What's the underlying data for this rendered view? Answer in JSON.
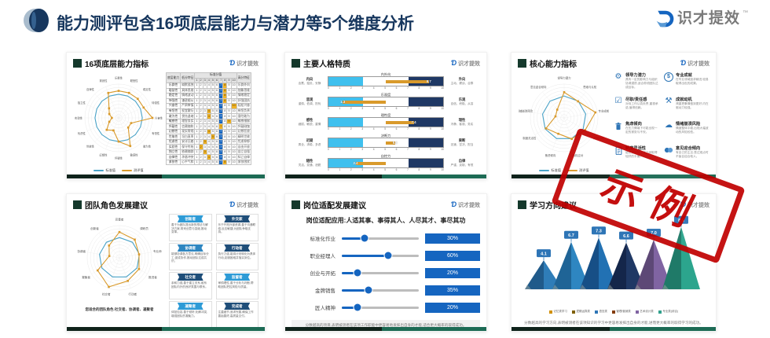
{
  "header": {
    "title": "能力测评包含16项底层能力与潜力等5个维度分析",
    "brand": "识才提效",
    "brand_tm": "™"
  },
  "stamp": {
    "label": "示例",
    "color": "#c00000"
  },
  "cards": {
    "c1": {
      "title": "16项底层能力指标"
    },
    "c2": {
      "title": "主要人格特质"
    },
    "c3": {
      "title": "核心能力指标",
      "items": [
        {
          "icon": "gear-icon",
          "title": "领导力潜力",
          "desc": "具有一定的影响力与组织协调潜质,适合带领团队达成目标。"
        },
        {
          "icon": "coin-icon",
          "title": "专业成就",
          "desc": "在专业领域追求精进,较易取得出色的成果。"
        },
        {
          "icon": "check-icon",
          "title": "尽职/责任感",
          "desc": "对待工作认真负责,重视承诺,值得信赖。"
        },
        {
          "icon": "tools-icon",
          "title": "成就动机",
          "desc": "渴望把事情做到更好,内在驱动力较强。"
        },
        {
          "icon": "trash-icon",
          "title": "焦虑倾向",
          "desc": "在压力情境下可能出现一定的紧张与不安。"
        },
        {
          "icon": "cloud-icon",
          "title": "情绪崩溃风险",
          "desc": "情绪整体平稳,出现大幅波动的风险较低。"
        },
        {
          "icon": "clipboard-icon",
          "title": "制度灵活性",
          "desc": "能在规则与变化之间取得较好的平衡。"
        },
        {
          "icon": "masks-icon",
          "title": "意见迎合倾向",
          "desc": "有自己的主见,表达观点时不盲目迎合他人。"
        }
      ]
    },
    "c4": {
      "title": "团队角色发展建议",
      "caption": "您适合的团队角色:社交者、协调者、凝聚者",
      "ribbons": [
        {
          "label": "创新者",
          "color": "#2e9bd6",
          "desc": "善于为团队提出新的想法与解决方案,带来创意与突破,推动变革。"
        },
        {
          "label": "外交家",
          "color": "#1f4e79",
          "desc": "乐于开拓外部资源,善于沟通联络,反应敏捷,为团队争取支持。"
        },
        {
          "label": "协调者",
          "color": "#2e86c1",
          "desc": "能够协调各方意见,明确目标分工,促成协作,推动团队达成共识。"
        },
        {
          "label": "行动者",
          "color": "#1f4e79",
          "desc": "执行力强,能将计划转化为具体行动,克服困难并落实到位。"
        },
        {
          "label": "社交者",
          "color": "#1f4e79",
          "desc": "亲和力强,善于建立关系,维系团队内外的良好氛围与联系。"
        },
        {
          "label": "监督者",
          "color": "#2e9bd6",
          "desc": "审慎理性,善于分析与判断,帮助团队把控风险与质量。"
        },
        {
          "label": "凝聚者",
          "color": "#2e9bd6",
          "desc": "体贴包容,善于倾听,化解冲突,增强团队的凝聚力。"
        },
        {
          "label": "完成者",
          "color": "#1f4e79",
          "desc": "注重细节,追求完善,确保工作善始善终,高质量交付。"
        }
      ]
    },
    "c5": {
      "title": "岗位适配发展建议",
      "subtitle": "岗位适配应用:人适其事、事得其人、人尽其才、事尽其功",
      "note": "分数越高的项目,表明被测者在该项工作职能中更容易地发挥出自身的才能,适合更大概率的取得成功。"
    },
    "c6": {
      "title": "学习方向建议",
      "note": "分数越高的学习方向,表明被测者在该项知识的学习中更容易发挥出自身的才能,进而更大概率的取得学习的成功。"
    }
  },
  "chart_data": [
    {
      "id": "abilities-radar",
      "type": "radar",
      "title": "16项底层能力指标",
      "rmax": 10,
      "labels": [
        "乐群性",
        "聪慧性",
        "稳定性",
        "恃强性",
        "兴奋性",
        "有恒性",
        "敢为性",
        "敏感性",
        "怀疑性",
        "幻想性",
        "世故性",
        "忧虑性",
        "实验性",
        "独立性",
        "自律性",
        "紧张性"
      ],
      "series": [
        {
          "name": "标准值",
          "color": "#4aa3c8",
          "markers": false,
          "values": [
            7,
            7,
            7,
            7,
            7,
            7,
            7,
            7,
            7,
            7,
            7,
            7,
            7,
            7,
            7,
            7
          ]
        },
        {
          "name": "测评值",
          "color": "#d99a2b",
          "markers": true,
          "values": [
            8,
            8,
            8,
            8,
            10,
            4,
            4,
            9,
            7,
            4,
            5,
            3,
            2,
            3,
            4,
            8
          ]
        }
      ]
    },
    {
      "id": "abilities-table",
      "type": "table",
      "headers": [
        "底层能力",
        "低分特征",
        "标准分值",
        "高分特征"
      ],
      "scale": [
        1,
        2,
        3,
        4,
        5,
        6,
        7,
        8,
        9,
        10
      ],
      "standard": 7,
      "rows": [
        {
          "name": "乐群性",
          "low": "缄默孤独",
          "high": "乐群外向",
          "score": 8
        },
        {
          "name": "聪慧性",
          "low": "具体思维",
          "high": "抽象思维",
          "score": 8
        },
        {
          "name": "稳定性",
          "low": "情绪波动",
          "high": "情绪稳定",
          "score": 8
        },
        {
          "name": "恃强性",
          "low": "谦逊顺从",
          "high": "好强固执",
          "score": 8
        },
        {
          "name": "兴奋性",
          "low": "严肃审慎",
          "high": "轻松兴奋",
          "score": 10
        },
        {
          "name": "有恒性",
          "low": "权宜敷衍",
          "high": "有恒负责",
          "score": 4
        },
        {
          "name": "敢为性",
          "low": "畏怯退缩",
          "high": "冒险敢为",
          "score": 4
        },
        {
          "name": "敏感性",
          "low": "理智务实",
          "high": "敏感细腻",
          "score": 9
        },
        {
          "name": "怀疑性",
          "low": "信赖随和",
          "high": "怀疑刚愎",
          "score": 7
        },
        {
          "name": "幻想性",
          "low": "现实常规",
          "high": "幻想狂放",
          "score": 4
        },
        {
          "name": "世故性",
          "low": "坦白直率",
          "high": "精明世故",
          "score": 5
        },
        {
          "name": "忧虑性",
          "low": "安详沉着",
          "high": "忧虑抑郁",
          "score": 3
        },
        {
          "name": "实验性",
          "low": "保守传统",
          "high": "自由开放",
          "score": 2
        },
        {
          "name": "独立性",
          "low": "依赖随群",
          "high": "自立自强",
          "score": 3
        },
        {
          "name": "自律性",
          "low": "矛盾冲突",
          "high": "知己自律",
          "score": 4
        },
        {
          "name": "紧张性",
          "low": "心平气和",
          "high": "紧张困扰",
          "score": 8
        }
      ]
    },
    {
      "id": "personality-bars",
      "type": "bar",
      "title": "主要人格特质",
      "axis_min": 0,
      "axis_max": 10,
      "midpoint": 5,
      "low_band": [
        0,
        3
      ],
      "high_band": [
        7,
        10
      ],
      "rows": [
        {
          "trait": "内外向",
          "value": 8.7,
          "left_title": "内向",
          "left_desc": "含蓄、独处、安静",
          "right_title": "外向",
          "right_desc": "主动、健谈、合群"
        },
        {
          "trait": "乐观度",
          "value": 1.3,
          "left_title": "悲观",
          "left_desc": "谨慎、低调、担忧",
          "right_title": "乐观",
          "right_desc": "自信、积极、从容"
        },
        {
          "trait": "理性度",
          "value": 7.4,
          "left_title": "感性",
          "left_desc": "细腻、敏锐、重情",
          "right_title": "理性",
          "right_desc": "冷静、客观、务实"
        },
        {
          "trait": "决断力",
          "value": 5.8,
          "left_title": "迟疑",
          "left_desc": "周全、求稳、多虑",
          "right_title": "果断",
          "right_desc": "迅速、坚决、担当"
        },
        {
          "trait": "自控力",
          "value": 2.4,
          "left_title": "随性",
          "left_desc": "灵活、变通、洒脱",
          "right_title": "自律",
          "right_desc": "严谨、克制、有恒"
        }
      ]
    },
    {
      "id": "core-radar",
      "type": "radar",
      "title": "核心能力指标",
      "rmax": 10,
      "labels": [
        "领导力潜力",
        "思维与认知",
        "专业成就",
        "成就动机",
        "危机应对",
        "焦虑倾向",
        "制度灵活性",
        "情绪崩溃风险",
        "意见迎合倾向"
      ],
      "series": [
        {
          "name": "标准值",
          "color": "#4aa3c8",
          "markers": false,
          "values": [
            6.5,
            6.5,
            6.5,
            6.5,
            6.5,
            6.5,
            6.5,
            6.5,
            6.5
          ]
        },
        {
          "name": "测评值",
          "color": "#d99a2b",
          "markers": true,
          "values": [
            7.6,
            6.4,
            9.4,
            7.2,
            6.6,
            5.0,
            6.2,
            2.6,
            3.2
          ]
        }
      ]
    },
    {
      "id": "team-radar",
      "type": "radar",
      "title": "团队角色发展建议",
      "rmax": 10,
      "labels": [
        "完善者",
        "调研员",
        "专业师",
        "推进者",
        "行动者",
        "社交者",
        "凝聚者",
        "协调者",
        "创新者"
      ],
      "series": [
        {
          "name": "标准值",
          "color": "#4aa3c8",
          "markers": false,
          "values": [
            6.3,
            6.3,
            6.3,
            6.3,
            6.3,
            6.3,
            6.3,
            6.3,
            6.3
          ]
        },
        {
          "name": "测评值",
          "color": "#d99a2b",
          "markers": true,
          "values": [
            8.0,
            7.4,
            6.2,
            7.0,
            7.6,
            9.6,
            7.8,
            3.2,
            5.0
          ]
        }
      ]
    },
    {
      "id": "job-fit-sliders",
      "type": "bar",
      "title": "岗位适配发展建议",
      "max_pct": 100,
      "rows": [
        {
          "label": "标准化作业",
          "pct": 30
        },
        {
          "label": "职业经理人",
          "pct": 60
        },
        {
          "label": "创业与开拓",
          "pct": 20
        },
        {
          "label": "金牌销售",
          "pct": 35
        },
        {
          "label": "匠人精神",
          "pct": 20
        }
      ]
    },
    {
      "id": "learning-peaks",
      "type": "area",
      "title": "学习方向建议",
      "ymax": 10,
      "values": [
        4.1,
        6.7,
        7.3,
        6.6,
        7.0,
        8.8
      ],
      "colors": [
        "#2f7db8",
        "#2e86c1",
        "#2271b3",
        "#1f3864",
        "#8064a2",
        "#2ca58d"
      ],
      "dark_colors": [
        "#205a8a",
        "#1f6496",
        "#174f86",
        "#14264a",
        "#5d4876",
        "#1f7a68"
      ],
      "tag_color": "#2e75b6",
      "legend": [
        {
          "label": "记忆类学习",
          "color": "#d19000"
        },
        {
          "label": "逻辑运算类",
          "color": "#7f6000"
        },
        {
          "label": "语言类",
          "color": "#2e75b6"
        },
        {
          "label": "管理/营销类",
          "color": "#843c0c"
        },
        {
          "label": "艺术设计类",
          "color": "#8064a2"
        },
        {
          "label": "专业类(综合)",
          "color": "#31a08c"
        }
      ]
    }
  ]
}
